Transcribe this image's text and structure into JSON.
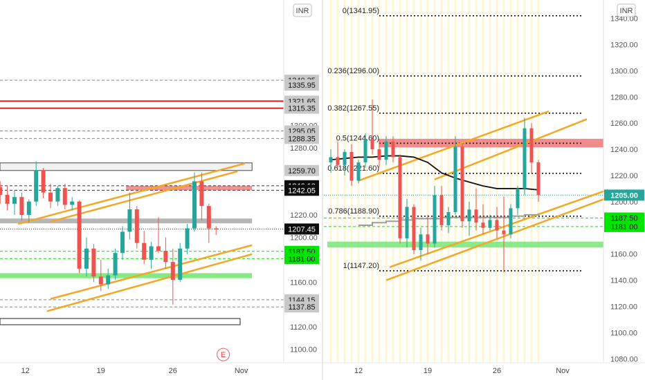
{
  "colors": {
    "up": "#26a69a",
    "down": "#ef5350",
    "channel": "#f5a623",
    "resistance": "#f08080",
    "support": "#7ee87e",
    "accent_green": "#00e600",
    "current_price": "#26a69a",
    "tag_gray": "#c8c8c8"
  },
  "chart_data": [
    {
      "type": "candlestick",
      "title": "",
      "currency_button": "INR",
      "ylim": [
        1088,
        1412
      ],
      "y_ticks": [
        1100,
        1120,
        1140,
        1160,
        1180,
        1200,
        1220,
        1240,
        1260,
        1280,
        1300,
        1320,
        1340
      ],
      "y_tick_labels": [
        "1100.00",
        "1120.00",
        "1140.00",
        "1160.00",
        "1180.00",
        "1200.00",
        "1220.00",
        "1240.00",
        "1260.00",
        "1280.00",
        "1300.00",
        "1320.00",
        "1340.00"
      ],
      "x_ticks": [
        "12",
        "19",
        "26",
        "Nov"
      ],
      "x_index_range": [
        0,
        35
      ],
      "x_tick_positions": [
        4,
        14.5,
        24.5,
        34
      ],
      "price_tags": [
        {
          "label": "1340.35",
          "value": 1340.35,
          "style": "gray"
        },
        {
          "label": "1335.95",
          "value": 1335.95,
          "style": "gray"
        },
        {
          "label": "1321.65",
          "value": 1321.65,
          "style": "gray"
        },
        {
          "label": "1315.35",
          "value": 1315.35,
          "style": "gray"
        },
        {
          "label": "1295.05",
          "value": 1295.05,
          "style": "gray"
        },
        {
          "label": "1288.35",
          "value": 1288.35,
          "style": "gray"
        },
        {
          "label": "1259.70",
          "value": 1259.7,
          "style": "gray"
        },
        {
          "label": "1246.10",
          "value": 1246.1,
          "style": "black"
        },
        {
          "label": "1242.05",
          "value": 1242.05,
          "style": "black"
        },
        {
          "label": "1207.45",
          "value": 1207.45,
          "style": "black"
        },
        {
          "label": "1187.50",
          "value": 1187.5,
          "style": "green"
        },
        {
          "label": "1181.00",
          "value": 1181.0,
          "style": "green"
        },
        {
          "label": "1144.20",
          "value": 1144.2,
          "style": "gray"
        },
        {
          "label": "1144.15",
          "value": 1144.15,
          "style": "gray"
        },
        {
          "label": "1137.85",
          "value": 1137.85,
          "style": "gray"
        }
      ],
      "horizontal_lines": [
        {
          "value": 1321.65,
          "color": "red",
          "style": "solid"
        },
        {
          "value": 1315.35,
          "color": "red",
          "style": "solid"
        },
        {
          "value": 1340.35,
          "color": "gray",
          "style": "dashed"
        },
        {
          "value": 1295.05,
          "color": "gray",
          "style": "dashed"
        },
        {
          "value": 1288.35,
          "color": "gray",
          "style": "dashed"
        },
        {
          "value": 1246.1,
          "color": "black",
          "style": "dashed"
        },
        {
          "value": 1242.05,
          "color": "black",
          "style": "dashed"
        },
        {
          "value": 1207.45,
          "color": "black",
          "style": "dotted"
        },
        {
          "value": 1187.5,
          "color": "green",
          "style": "dashed"
        },
        {
          "value": 1181.0,
          "color": "green",
          "style": "dashed"
        },
        {
          "value": 1144.2,
          "color": "gray",
          "style": "dashed"
        },
        {
          "value": 1137.85,
          "color": "gray",
          "style": "dashed"
        }
      ],
      "zones": [
        {
          "from": 1259.7,
          "to": 1266.5,
          "color": "gray-outline",
          "x_from": 0,
          "x_to": 35
        },
        {
          "from": 1242.05,
          "to": 1246.1,
          "color": "resistance",
          "x_from": 18,
          "x_to": 35
        },
        {
          "from": 1212.5,
          "to": 1216.8,
          "color": "gray",
          "x_from": 0,
          "x_to": 35
        },
        {
          "from": 1163.5,
          "to": 1168.0,
          "color": "support",
          "x_from": 0,
          "x_to": 35
        }
      ],
      "trendlines": [
        {
          "x1": 2.5,
          "y1": 1212,
          "x2": 34,
          "y2": 1266
        },
        {
          "x1": 7,
          "y1": 1214,
          "x2": 33,
          "y2": 1259
        },
        {
          "x1": 7,
          "y1": 1145,
          "x2": 35,
          "y2": 1193
        },
        {
          "x1": 6.5,
          "y1": 1134,
          "x2": 35,
          "y2": 1185
        }
      ],
      "earnings_marker": {
        "label": "E",
        "x": 31,
        "value": 1099
      },
      "candles": [
        {
          "o": 1245,
          "h": 1250,
          "l": 1230,
          "c": 1238
        },
        {
          "o": 1238,
          "h": 1246,
          "l": 1224,
          "c": 1230
        },
        {
          "o": 1230,
          "h": 1242,
          "l": 1220,
          "c": 1236
        },
        {
          "o": 1236,
          "h": 1240,
          "l": 1215,
          "c": 1220
        },
        {
          "o": 1220,
          "h": 1234,
          "l": 1213,
          "c": 1232
        },
        {
          "o": 1232,
          "h": 1268,
          "l": 1228,
          "c": 1260
        },
        {
          "o": 1260,
          "h": 1262,
          "l": 1235,
          "c": 1240
        },
        {
          "o": 1240,
          "h": 1248,
          "l": 1226,
          "c": 1232
        },
        {
          "o": 1232,
          "h": 1246,
          "l": 1228,
          "c": 1244
        },
        {
          "o": 1244,
          "h": 1248,
          "l": 1225,
          "c": 1229
        },
        {
          "o": 1229,
          "h": 1236,
          "l": 1224,
          "c": 1232
        },
        {
          "o": 1232,
          "h": 1233,
          "l": 1168,
          "c": 1172
        },
        {
          "o": 1172,
          "h": 1200,
          "l": 1165,
          "c": 1190
        },
        {
          "o": 1190,
          "h": 1194,
          "l": 1160,
          "c": 1165
        },
        {
          "o": 1165,
          "h": 1180,
          "l": 1152,
          "c": 1158
        },
        {
          "o": 1158,
          "h": 1172,
          "l": 1154,
          "c": 1166
        },
        {
          "o": 1166,
          "h": 1190,
          "l": 1162,
          "c": 1186
        },
        {
          "o": 1186,
          "h": 1210,
          "l": 1180,
          "c": 1205
        },
        {
          "o": 1205,
          "h": 1240,
          "l": 1198,
          "c": 1225
        },
        {
          "o": 1225,
          "h": 1228,
          "l": 1190,
          "c": 1195
        },
        {
          "o": 1195,
          "h": 1206,
          "l": 1176,
          "c": 1180
        },
        {
          "o": 1180,
          "h": 1196,
          "l": 1172,
          "c": 1192
        },
        {
          "o": 1192,
          "h": 1218,
          "l": 1186,
          "c": 1188
        },
        {
          "o": 1188,
          "h": 1200,
          "l": 1172,
          "c": 1178
        },
        {
          "o": 1178,
          "h": 1190,
          "l": 1140,
          "c": 1162
        },
        {
          "o": 1162,
          "h": 1195,
          "l": 1160,
          "c": 1190
        },
        {
          "o": 1190,
          "h": 1212,
          "l": 1185,
          "c": 1208
        },
        {
          "o": 1208,
          "h": 1258,
          "l": 1205,
          "c": 1250
        },
        {
          "o": 1250,
          "h": 1258,
          "l": 1215,
          "c": 1228
        },
        {
          "o": 1228,
          "h": 1230,
          "l": 1195,
          "c": 1208
        },
        {
          "o": 1208,
          "h": 1210,
          "l": 1202,
          "c": 1207
        }
      ]
    },
    {
      "type": "candlestick",
      "title": "",
      "currency_button": "INR",
      "ylim": [
        1077,
        1354
      ],
      "y_ticks": [
        1080,
        1100,
        1120,
        1140,
        1160,
        1180,
        1200,
        1220,
        1240,
        1260,
        1280,
        1300,
        1320,
        1340
      ],
      "y_tick_labels": [
        "1080.00",
        "1100.00",
        "1120.00",
        "1140.00",
        "1160.00",
        "1180.00",
        "1200.00",
        "1220.00",
        "1240.00",
        "1260.00",
        "1280.00",
        "1300.00",
        "1320.00",
        "1340.00"
      ],
      "x_ticks": [
        "12",
        "19",
        "26",
        "Nov"
      ],
      "x_index_range": [
        0,
        40
      ],
      "x_tick_positions": [
        4.5,
        14.5,
        24.5,
        34
      ],
      "current_price": {
        "label": "1205.00",
        "value": 1205.0
      },
      "price_tags": [
        {
          "label": "1187.50",
          "value": 1187.5,
          "style": "green"
        },
        {
          "label": "1181.00",
          "value": 1181.0,
          "style": "green"
        }
      ],
      "fibonacci": [
        {
          "label": "0(1341.95)",
          "value": 1341.95
        },
        {
          "label": "0.236(1296.00)",
          "value": 1296.0
        },
        {
          "label": "0.382(1267.55)",
          "value": 1267.55
        },
        {
          "label": "0.5(1244.60)",
          "value": 1244.6
        },
        {
          "label": "0.618(1221.60)",
          "value": 1221.6
        },
        {
          "label": "0.786(1188.90)",
          "value": 1188.9
        },
        {
          "label": "1(1147.20)",
          "value": 1147.2
        }
      ],
      "zones": [
        {
          "from": 1241.5,
          "to": 1248.0,
          "color": "resistance",
          "x_from": 7.5,
          "x_to": 40
        },
        {
          "from": 1165.0,
          "to": 1169.5,
          "color": "support",
          "x_from": 0,
          "x_to": 40
        }
      ],
      "trendlines": [
        {
          "x1": 4,
          "y1": 1216,
          "x2": 31.5,
          "y2": 1269
        },
        {
          "x1": 15,
          "y1": 1217,
          "x2": 37,
          "y2": 1263
        },
        {
          "x1": 8.5,
          "y1": 1150,
          "x2": 40,
          "y2": 1209
        },
        {
          "x1": 8,
          "y1": 1140,
          "x2": 40,
          "y2": 1203
        }
      ],
      "moving_average": {
        "name": "",
        "x": [
          0,
          2,
          4,
          6,
          8,
          10,
          12,
          14,
          16,
          18,
          20,
          22,
          24,
          26,
          28,
          30
        ],
        "y": [
          1232,
          1233,
          1234,
          1234,
          1235,
          1235,
          1234,
          1230,
          1222,
          1218,
          1215,
          1212,
          1210,
          1210,
          1210,
          1209
        ]
      },
      "step_line": {
        "x": [
          4,
          6,
          8,
          10,
          12,
          14,
          16,
          18,
          20,
          22,
          24,
          26,
          28,
          30
        ],
        "y": [
          1182,
          1184,
          1185,
          1186,
          1187,
          1187,
          1188,
          1188,
          1188,
          1188,
          1188,
          1189,
          1190,
          1191
        ]
      },
      "candles": [
        {
          "o": 1230,
          "h": 1240,
          "l": 1222,
          "c": 1234
        },
        {
          "o": 1234,
          "h": 1246,
          "l": 1226,
          "c": 1228
        },
        {
          "o": 1228,
          "h": 1240,
          "l": 1220,
          "c": 1238
        },
        {
          "o": 1238,
          "h": 1244,
          "l": 1212,
          "c": 1216
        },
        {
          "o": 1216,
          "h": 1232,
          "l": 1214,
          "c": 1230
        },
        {
          "o": 1230,
          "h": 1252,
          "l": 1226,
          "c": 1248
        },
        {
          "o": 1248,
          "h": 1278,
          "l": 1236,
          "c": 1240
        },
        {
          "o": 1240,
          "h": 1248,
          "l": 1226,
          "c": 1232
        },
        {
          "o": 1232,
          "h": 1250,
          "l": 1228,
          "c": 1246
        },
        {
          "o": 1246,
          "h": 1250,
          "l": 1230,
          "c": 1234
        },
        {
          "o": 1234,
          "h": 1236,
          "l": 1168,
          "c": 1172
        },
        {
          "o": 1172,
          "h": 1202,
          "l": 1165,
          "c": 1196
        },
        {
          "o": 1196,
          "h": 1198,
          "l": 1160,
          "c": 1163
        },
        {
          "o": 1163,
          "h": 1180,
          "l": 1155,
          "c": 1175
        },
        {
          "o": 1175,
          "h": 1190,
          "l": 1160,
          "c": 1168
        },
        {
          "o": 1168,
          "h": 1212,
          "l": 1165,
          "c": 1205
        },
        {
          "o": 1205,
          "h": 1212,
          "l": 1178,
          "c": 1182
        },
        {
          "o": 1182,
          "h": 1196,
          "l": 1176,
          "c": 1192
        },
        {
          "o": 1192,
          "h": 1250,
          "l": 1190,
          "c": 1242
        },
        {
          "o": 1242,
          "h": 1244,
          "l": 1180,
          "c": 1185
        },
        {
          "o": 1185,
          "h": 1200,
          "l": 1174,
          "c": 1194
        },
        {
          "o": 1194,
          "h": 1210,
          "l": 1178,
          "c": 1184
        },
        {
          "o": 1184,
          "h": 1198,
          "l": 1175,
          "c": 1180
        },
        {
          "o": 1180,
          "h": 1190,
          "l": 1178,
          "c": 1186
        },
        {
          "o": 1186,
          "h": 1196,
          "l": 1172,
          "c": 1178
        },
        {
          "o": 1178,
          "h": 1204,
          "l": 1146,
          "c": 1175
        },
        {
          "o": 1175,
          "h": 1198,
          "l": 1172,
          "c": 1195
        },
        {
          "o": 1195,
          "h": 1212,
          "l": 1190,
          "c": 1210
        },
        {
          "o": 1210,
          "h": 1264,
          "l": 1205,
          "c": 1256
        },
        {
          "o": 1256,
          "h": 1260,
          "l": 1222,
          "c": 1230
        },
        {
          "o": 1230,
          "h": 1232,
          "l": 1200,
          "c": 1205
        }
      ]
    }
  ]
}
